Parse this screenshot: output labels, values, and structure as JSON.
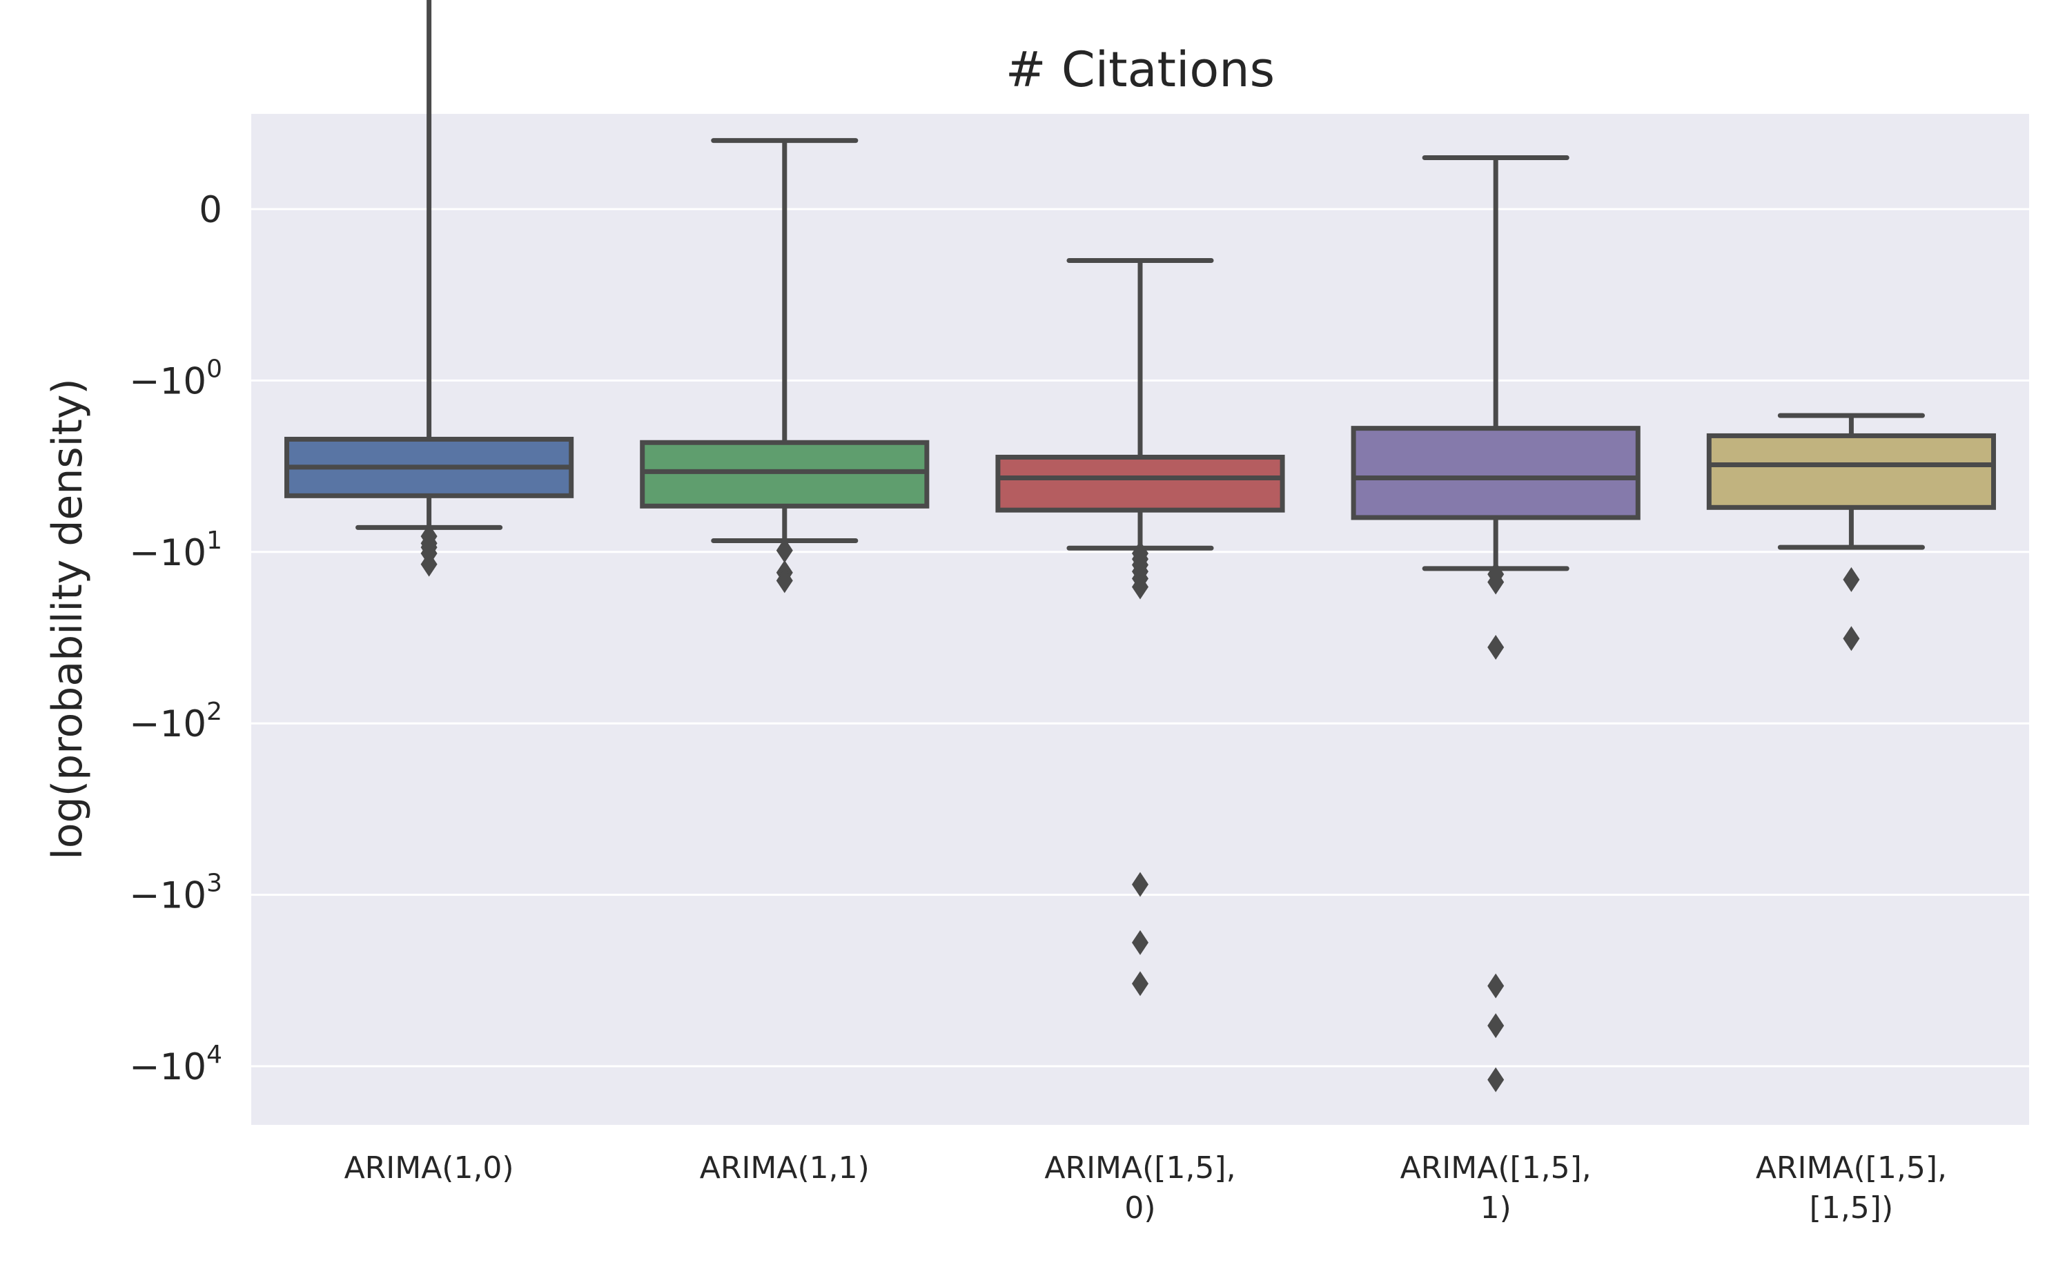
{
  "chart_data": {
    "type": "box",
    "title": "# Citations",
    "xlabel": "",
    "ylabel": "log(probability density)",
    "yscale": "symlog",
    "ylim": [
      -17000,
      3.2
    ],
    "grid": true,
    "legend": "none",
    "ytick_labels": [
      {
        "value": 0,
        "base": "0",
        "exp": ""
      },
      {
        "value": -1,
        "base": "−10",
        "exp": "0"
      },
      {
        "value": -10,
        "base": "−10",
        "exp": "1"
      },
      {
        "value": -100,
        "base": "−10",
        "exp": "2"
      },
      {
        "value": -1000,
        "base": "−10",
        "exp": "3"
      },
      {
        "value": -10000,
        "base": "−10",
        "exp": "4"
      }
    ],
    "categories": [
      [
        "ARIMA(1,0)"
      ],
      [
        "ARIMA(1,1)"
      ],
      [
        "ARIMA([1,5],",
        "0)"
      ],
      [
        "ARIMA([1,5],",
        "1)"
      ],
      [
        "ARIMA([1,5],",
        "[1,5])"
      ]
    ],
    "boxes": [
      {
        "whisker_high": 2.4,
        "q3": -2.2,
        "median": -3.2,
        "q1": -4.7,
        "whisker_low": -7.2,
        "outliers": [
          -8.1,
          -8.9,
          -9.4,
          -10.2,
          -11.8
        ]
      },
      {
        "whisker_high": 0.4,
        "q3": -2.3,
        "median": -3.4,
        "q1": -5.4,
        "whisker_low": -8.6,
        "outliers": [
          -9.8,
          -13.2,
          -14.7
        ]
      },
      {
        "whisker_high": -0.3,
        "q3": -2.8,
        "median": -3.7,
        "q1": -5.7,
        "whisker_low": -9.5,
        "outliers": [
          -10.2,
          -11.0,
          -11.9,
          -13.0,
          -14.3,
          -16.0,
          -870,
          -1900,
          -3300
        ]
      },
      {
        "whisker_high": 0.3,
        "q3": -1.9,
        "median": -3.7,
        "q1": -6.3,
        "whisker_low": -12.5,
        "outliers": [
          -13.5,
          -15.0,
          -36,
          -3400,
          -5800,
          -12000
        ]
      },
      {
        "whisker_high": -1.6,
        "q3": -2.1,
        "median": -3.1,
        "q1": -5.5,
        "whisker_low": -9.4,
        "outliers": [
          -14.5,
          -32
        ]
      }
    ],
    "colors": [
      "#5975a4",
      "#5f9e6e",
      "#b55d60",
      "#857aab",
      "#c1b37f"
    ],
    "line_color": "#4a4a4a",
    "background": "#eaeaf2"
  }
}
